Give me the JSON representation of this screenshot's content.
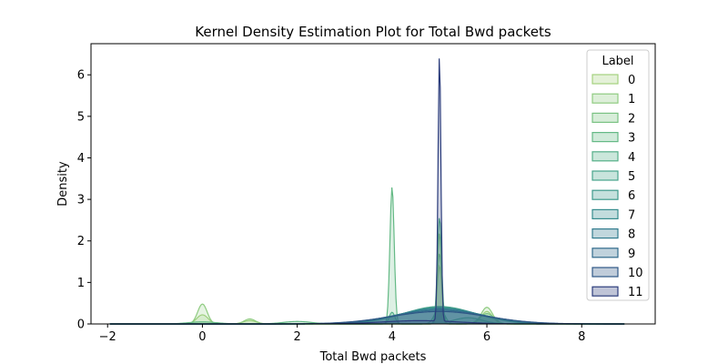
{
  "chart_data": {
    "type": "area",
    "title": "Kernel Density Estimation Plot for Total Bwd packets",
    "xlabel": "Total Bwd packets",
    "ylabel": "Density",
    "xlim": [
      -2.35,
      9.55
    ],
    "ylim": [
      0,
      6.75
    ],
    "x_ticks": [
      -2,
      0,
      2,
      4,
      6,
      8
    ],
    "y_ticks": [
      0,
      1,
      2,
      3,
      4,
      5,
      6
    ],
    "grid": false,
    "legend": {
      "title": "Label",
      "placement": "top-right"
    },
    "series": [
      {
        "name": "0",
        "color": "#a4d27f",
        "peaks": [
          [
            0,
            0.22,
            0.12
          ],
          [
            1,
            0.08,
            0.14
          ],
          [
            5,
            1.4,
            0.05
          ],
          [
            6,
            0.3,
            0.12
          ]
        ]
      },
      {
        "name": "1",
        "color": "#8fcb80",
        "peaks": [
          [
            0,
            0.48,
            0.1
          ],
          [
            1,
            0.12,
            0.12
          ],
          [
            5,
            2.2,
            0.04
          ],
          [
            6,
            0.4,
            0.12
          ]
        ]
      },
      {
        "name": "2",
        "color": "#79c282",
        "peaks": [
          [
            5,
            1.7,
            0.05
          ],
          [
            6,
            0.25,
            0.15
          ]
        ]
      },
      {
        "name": "3",
        "color": "#64b985",
        "peaks": [
          [
            0,
            0.05,
            0.3
          ],
          [
            2,
            0.06,
            0.3
          ],
          [
            4,
            3.3,
            0.045
          ],
          [
            5,
            0.4,
            0.1
          ]
        ]
      },
      {
        "name": "4",
        "color": "#54af88",
        "peaks": [
          [
            4,
            0.28,
            0.06
          ],
          [
            5,
            2.55,
            0.045
          ],
          [
            5.6,
            0.15,
            0.3
          ]
        ]
      },
      {
        "name": "5",
        "color": "#48a48b",
        "peaks": [
          [
            5,
            0.42,
            0.75
          ]
        ]
      },
      {
        "name": "6",
        "color": "#3e998d",
        "peaks": [
          [
            5,
            0.4,
            0.8
          ]
        ]
      },
      {
        "name": "7",
        "color": "#368c8e",
        "peaks": [
          [
            5,
            0.38,
            0.85
          ]
        ]
      },
      {
        "name": "8",
        "color": "#327c8e",
        "peaks": [
          [
            5,
            0.36,
            0.9
          ]
        ]
      },
      {
        "name": "9",
        "color": "#306a8b",
        "peaks": [
          [
            5,
            0.33,
            0.95
          ]
        ]
      },
      {
        "name": "10",
        "color": "#2f5786",
        "peaks": [
          [
            5,
            0.3,
            1.0
          ]
        ]
      },
      {
        "name": "11",
        "color": "#2c3d7c",
        "peaks": [
          [
            5,
            6.45,
            0.03
          ],
          [
            4.6,
            0.08,
            0.8
          ]
        ]
      }
    ]
  }
}
